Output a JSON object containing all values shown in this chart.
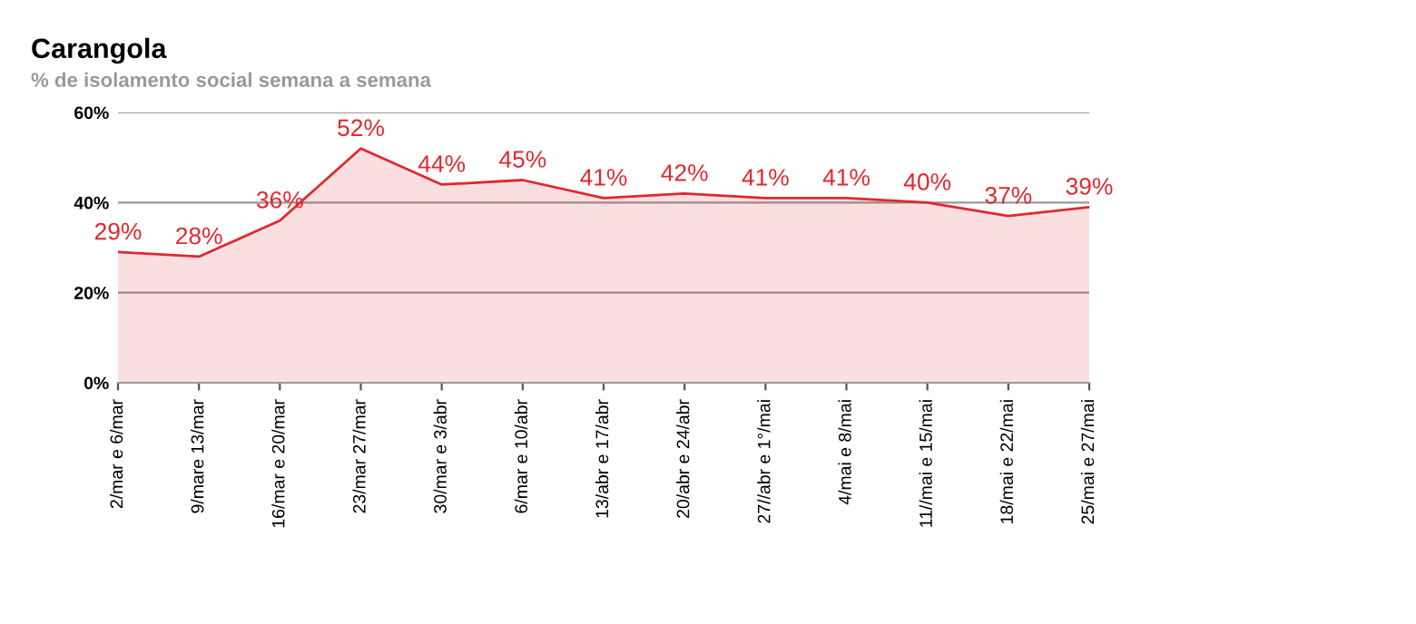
{
  "chart_data": {
    "type": "area",
    "title": "Carangola",
    "subtitle": "% de isolamento social semana a semana",
    "categories": [
      "2/mar e 6/mar",
      "9/mare 13/mar",
      "16/mar e 20/mar",
      "23/mar 27/mar",
      "30/mar e 3/abr",
      "6/mar e 10/abr",
      "13/abr e 17/abr",
      "20/abr e 24/abr",
      "27//abr e 1°/mai",
      "4/mai e 8/mai",
      "11//mai e 15/mai",
      "18/mai e 22/mai",
      "25/mai e 27/mai"
    ],
    "series": [
      {
        "color": "#e0282e",
        "values": [
          29,
          28,
          36,
          52,
          44,
          45,
          41,
          42,
          41,
          41,
          40,
          37,
          39
        ],
        "value_labels": [
          "29%",
          "28%",
          "36%",
          "52%",
          "44%",
          "45%",
          "41%",
          "42%",
          "41%",
          "41%",
          "40%",
          "37%",
          "39%"
        ]
      }
    ],
    "ylim": [
      0,
      60
    ],
    "yticks": [
      {
        "value": 0,
        "label": "0%"
      },
      {
        "value": 20,
        "label": "20%"
      },
      {
        "value": 40,
        "label": "40%"
      },
      {
        "value": 60,
        "label": "60%"
      }
    ],
    "grid": "y",
    "legend": false
  }
}
